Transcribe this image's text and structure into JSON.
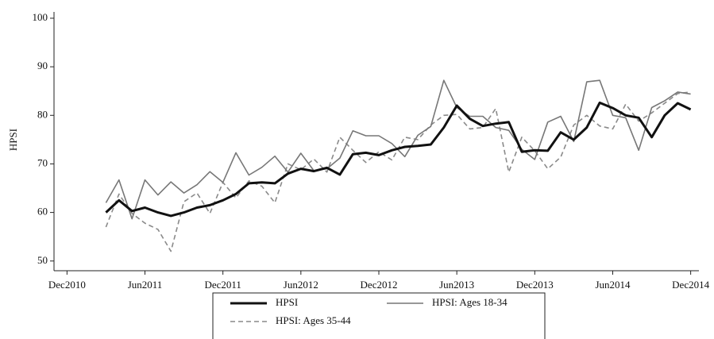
{
  "chart_data": {
    "type": "line",
    "y_label": "HPSI",
    "x": [
      "2011-03",
      "2011-04",
      "2011-05",
      "2011-06",
      "2011-07",
      "2011-08",
      "2011-09",
      "2011-10",
      "2011-11",
      "2011-12",
      "2012-01",
      "2012-02",
      "2012-03",
      "2012-04",
      "2012-05",
      "2012-06",
      "2012-07",
      "2012-08",
      "2012-09",
      "2012-10",
      "2012-11",
      "2012-12",
      "2013-01",
      "2013-02",
      "2013-03",
      "2013-04",
      "2013-05",
      "2013-06",
      "2013-07",
      "2013-08",
      "2013-09",
      "2013-10",
      "2013-11",
      "2013-12",
      "2014-01",
      "2014-02",
      "2014-03",
      "2014-04",
      "2014-05",
      "2014-06",
      "2014-07",
      "2014-08",
      "2014-09",
      "2014-10",
      "2014-11",
      "2014-12"
    ],
    "series": [
      {
        "name": "HPSI",
        "color": "#111111",
        "width": 3,
        "dashed": false,
        "values": [
          60,
          62.5,
          60.3,
          61,
          60,
          59.3,
          60,
          61,
          61.5,
          62.5,
          63.8,
          66,
          66.2,
          66,
          68,
          69,
          68.5,
          69.2,
          67.8,
          72,
          72.3,
          71.8,
          72.8,
          73.5,
          73.7,
          74,
          77.5,
          82,
          79.3,
          77.8,
          78.3,
          78.6,
          72.5,
          72.8,
          72.7,
          76.5,
          75,
          77.5,
          82.6,
          81.5,
          80,
          79.5,
          75.5,
          80,
          82.5,
          81.2
        ]
      },
      {
        "name": "HPSI: Ages 18-34",
        "color": "#777777",
        "width": 1.6,
        "dashed": false,
        "values": [
          62,
          66.7,
          58.7,
          66.7,
          63.6,
          66.3,
          64,
          65.7,
          68.4,
          66.2,
          72.3,
          67.7,
          69.3,
          71.6,
          68.3,
          72.2,
          68.6,
          69,
          71.2,
          76.8,
          75.8,
          75.8,
          74.2,
          71.5,
          75.9,
          77.7,
          87.2,
          81.6,
          79.8,
          79.8,
          77.5,
          76.9,
          73,
          70.9,
          78.6,
          79.8,
          74.6,
          86.9,
          87.2,
          80,
          79.5,
          72.8,
          81.6,
          83,
          84.8,
          84.4
        ]
      },
      {
        "name": "HPSI: Ages 35-44",
        "color": "#8a8a8a",
        "width": 1.6,
        "dashed": true,
        "values": [
          57,
          63.8,
          59.8,
          57.8,
          56.5,
          52,
          62.2,
          64,
          59.8,
          66.2,
          63,
          66.5,
          65.4,
          62,
          70,
          68.8,
          71,
          68.3,
          75.5,
          72.8,
          70.3,
          72.5,
          70.8,
          75.5,
          75,
          78,
          80,
          80.2,
          77.2,
          77.5,
          81.4,
          68.3,
          75.5,
          72.7,
          69,
          71.4,
          78,
          80,
          77.8,
          77.2,
          82.3,
          78.8,
          80.5,
          82.5,
          84.5,
          84.8
        ]
      }
    ],
    "xlim": [
      "2010-11",
      "2015-01"
    ],
    "xticks": [
      {
        "value": "2010-12",
        "label": "Dec2010"
      },
      {
        "value": "2011-06",
        "label": "Jun2011"
      },
      {
        "value": "2011-12",
        "label": "Dec2011"
      },
      {
        "value": "2012-06",
        "label": "Jun2012"
      },
      {
        "value": "2012-12",
        "label": "Dec2012"
      },
      {
        "value": "2013-06",
        "label": "Jun2013"
      },
      {
        "value": "2013-12",
        "label": "Dec2013"
      },
      {
        "value": "2014-06",
        "label": "Jun2014"
      },
      {
        "value": "2014-12",
        "label": "Dec2014"
      }
    ],
    "ylim": [
      48,
      101.3
    ],
    "yticks": [
      50,
      60,
      70,
      80,
      90,
      100
    ],
    "grid": false,
    "legend": "bottom"
  }
}
